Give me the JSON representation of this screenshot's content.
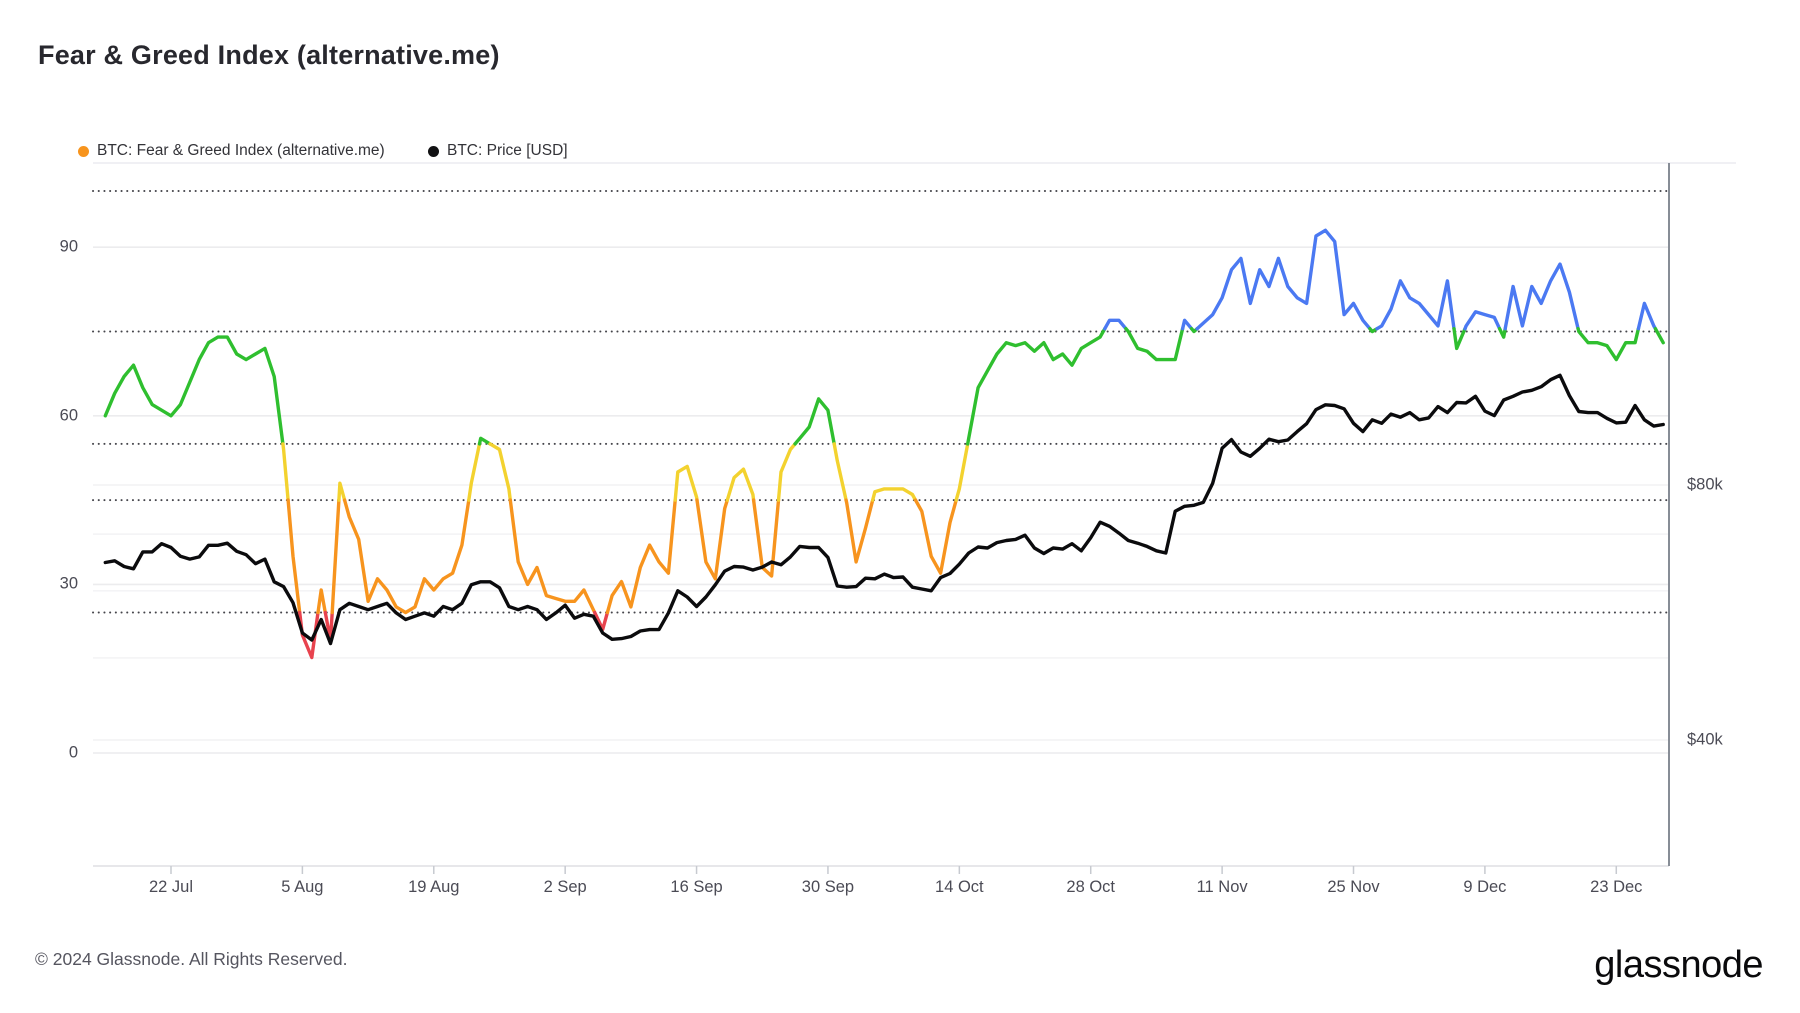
{
  "header": {
    "title": "Fear & Greed Index (alternative.me)"
  },
  "legend": {
    "items": [
      {
        "label": "BTC: Fear & Greed Index (alternative.me)",
        "color": "#f7941d"
      },
      {
        "label": "BTC: Price [USD]",
        "color": "#111113"
      }
    ]
  },
  "footer": {
    "copyright": "© 2024 Glassnode. All Rights Reserved.",
    "logo_text": "glassnode"
  },
  "chart_data": {
    "type": "line",
    "title": "Fear & Greed Index (alternative.me)",
    "x": {
      "start_date": "2024-07-15",
      "end_date": "2024-12-28",
      "tick_labels": [
        {
          "label": "22 Jul",
          "day_index": 7
        },
        {
          "label": "5 Aug",
          "day_index": 21
        },
        {
          "label": "19 Aug",
          "day_index": 35
        },
        {
          "label": "2 Sep",
          "day_index": 49
        },
        {
          "label": "16 Sep",
          "day_index": 63
        },
        {
          "label": "30 Sep",
          "day_index": 77
        },
        {
          "label": "14 Oct",
          "day_index": 91
        },
        {
          "label": "28 Oct",
          "day_index": 105
        },
        {
          "label": "11 Nov",
          "day_index": 119
        },
        {
          "label": "25 Nov",
          "day_index": 133
        },
        {
          "label": "9 Dec",
          "day_index": 147
        },
        {
          "label": "23 Dec",
          "day_index": 161
        }
      ]
    },
    "left_axis": {
      "tick_values": [
        90,
        60,
        30,
        0
      ],
      "range": [
        0,
        105
      ],
      "dotted_thresholds": [
        25,
        45,
        55,
        75,
        100
      ]
    },
    "right_axis": {
      "scale": "log",
      "ticks": [
        {
          "label": "$80k",
          "value_k": 80
        },
        {
          "label": "$40k",
          "value_k": 40
        }
      ]
    },
    "fg_bands": [
      {
        "max": 25,
        "color": "#e8434e",
        "name": "extreme-fear-red"
      },
      {
        "max": 45,
        "color": "#f7941e",
        "name": "fear-orange"
      },
      {
        "max": 55,
        "color": "#f3d22f",
        "name": "neutral-yellow"
      },
      {
        "max": 75.5,
        "color": "#2fbf2f",
        "name": "greed-green"
      },
      {
        "max": 101,
        "color": "#4b79f2",
        "name": "extreme-greed-blue"
      }
    ],
    "price_color": "#0b0b0d",
    "series": [
      {
        "name": "BTC: Fear & Greed Index (alternative.me)",
        "axis": "left",
        "values": [
          60,
          64,
          67,
          69,
          65,
          62,
          61,
          60,
          62,
          66,
          70,
          73,
          74,
          74,
          71,
          70,
          71,
          72,
          67,
          54,
          35,
          21,
          17,
          29,
          20,
          48,
          42,
          38,
          27,
          31,
          29,
          26,
          25,
          26,
          31,
          29,
          31,
          32,
          37,
          48,
          56,
          55,
          54,
          47,
          34,
          30,
          33,
          28,
          27.5,
          27,
          27,
          29,
          25.5,
          22,
          28,
          30.5,
          26,
          33,
          37,
          34,
          32,
          50,
          51,
          45.5,
          34,
          31,
          43.5,
          49,
          50.5,
          46,
          33,
          31.5,
          50,
          54,
          56,
          58,
          63,
          61,
          52,
          44.5,
          34,
          40,
          46.5,
          47,
          47,
          47,
          46,
          43,
          35,
          32,
          41,
          47,
          56,
          65,
          68,
          71,
          73,
          72.5,
          73,
          71.5,
          73,
          70,
          71,
          69,
          72,
          73,
          74,
          77,
          77,
          75,
          72,
          71.5,
          70,
          70,
          70,
          77,
          75,
          76.5,
          78,
          81,
          86,
          88,
          80,
          86,
          83,
          88,
          83,
          81,
          80,
          92,
          93,
          91,
          78,
          80,
          77,
          75,
          76,
          79,
          84,
          81,
          80,
          78,
          76,
          84,
          72,
          76,
          78.5,
          78,
          77.5,
          74,
          83,
          76,
          83,
          80,
          84,
          87,
          82,
          75,
          73,
          73,
          72.5,
          70,
          73,
          73,
          80,
          76,
          73
        ]
      },
      {
        "name": "BTC: Price [USD]",
        "axis": "right",
        "unit": "USD thousands",
        "values": [
          64.8,
          65.1,
          64.1,
          63.7,
          66.7,
          66.7,
          68.2,
          67.5,
          65.9,
          65.4,
          65.8,
          67.9,
          67.9,
          68.3,
          66.8,
          66.2,
          64.6,
          65.4,
          61.5,
          60.7,
          58.1,
          53.5,
          52.5,
          55.5,
          52.0,
          57.0,
          58.0,
          57.5,
          57.0,
          57.5,
          58.0,
          56.5,
          55.5,
          56.0,
          56.5,
          56.0,
          57.5,
          57.0,
          58.0,
          61.0,
          61.5,
          61.5,
          60.5,
          57.5,
          57.0,
          57.5,
          57.0,
          55.5,
          56.5,
          57.7,
          55.7,
          56.3,
          56.0,
          53.5,
          52.6,
          52.7,
          53.0,
          53.8,
          54.0,
          54.0,
          56.5,
          60.0,
          59.0,
          57.5,
          59.0,
          61.0,
          63.3,
          64.1,
          64.0,
          63.5,
          64.0,
          64.9,
          64.4,
          65.8,
          67.7,
          67.5,
          67.5,
          65.7,
          60.8,
          60.6,
          60.7,
          62.1,
          62.0,
          62.8,
          62.2,
          62.3,
          60.6,
          60.3,
          60.0,
          62.2,
          62.9,
          64.5,
          66.5,
          67.6,
          67.4,
          68.4,
          68.8,
          69.0,
          69.8,
          67.4,
          66.4,
          67.4,
          67.2,
          68.2,
          66.9,
          69.3,
          72.3,
          71.5,
          70.2,
          68.8,
          68.3,
          67.7,
          66.9,
          66.5,
          74.5,
          75.5,
          75.7,
          76.3,
          80.4,
          88.4,
          90.5,
          87.5,
          86.5,
          88.4,
          90.6,
          90.0,
          90.4,
          92.5,
          94.5,
          98.2,
          99.5,
          99.3,
          98.4,
          94.6,
          92.5,
          95.5,
          94.6,
          97.0,
          96.2,
          97.4,
          95.5,
          96.0,
          99.0,
          97.4,
          100.1,
          100.0,
          101.8,
          97.8,
          96.6,
          100.8,
          101.8,
          103.0,
          103.5,
          104.5,
          106.5,
          107.8,
          102.0,
          97.7,
          97.4,
          97.4,
          95.9,
          94.7,
          94.9,
          99.3,
          95.5,
          93.9,
          94.3
        ]
      }
    ]
  }
}
